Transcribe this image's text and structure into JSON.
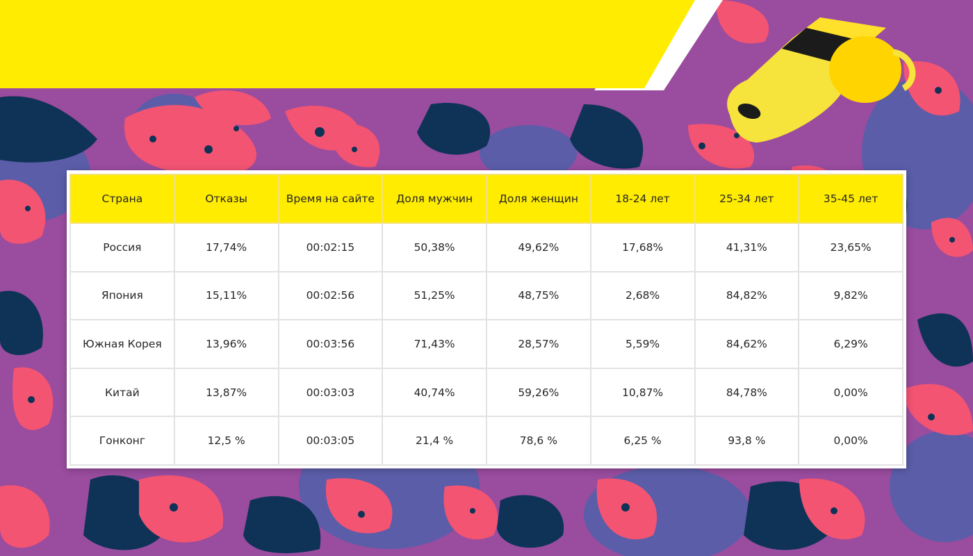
{
  "colors": {
    "background_pink": "#f35472",
    "background_purple": "#9a4c9f",
    "background_navy": "#0f3357",
    "background_violet": "#5b5da9",
    "banner_yellow": "#ffec00",
    "header_yellow": "#ffec00",
    "whistle_yellow": "#f6e33b"
  },
  "icons": [
    "whistle-icon"
  ],
  "chart_data": {
    "type": "table",
    "columns": [
      "Страна",
      "Отказы",
      "Время на сайте",
      "Доля мужчин",
      "Доля женщин",
      "18-24 лет",
      "25-34 лет",
      "35-45 лет"
    ],
    "rows": [
      [
        "Россия",
        "17,74%",
        "00:02:15",
        "50,38%",
        "49,62%",
        "17,68%",
        "41,31%",
        "23,65%"
      ],
      [
        "Япония",
        "15,11%",
        "00:02:56",
        "51,25%",
        "48,75%",
        "2,68%",
        "84,82%",
        "9,82%"
      ],
      [
        "Южная Корея",
        "13,96%",
        "00:03:56",
        "71,43%",
        "28,57%",
        "5,59%",
        "84,62%",
        "6,29%"
      ],
      [
        "Китай",
        "13,87%",
        "00:03:03",
        "40,74%",
        "59,26%",
        "10,87%",
        "84,78%",
        "0,00%"
      ],
      [
        "Гонконг",
        "12,5 %",
        "00:03:05",
        "21,4 %",
        "78,6 %",
        "6,25 %",
        "93,8 %",
        "0,00%"
      ]
    ]
  }
}
